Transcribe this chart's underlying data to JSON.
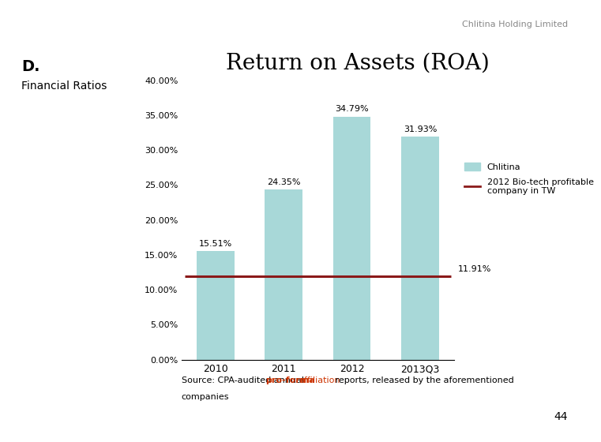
{
  "title": "Return on Assets (ROA)",
  "header": "Chlitina Holding Limited",
  "left_label_line1": "D.",
  "left_label_line2": "Financial Ratios",
  "categories": [
    "2010",
    "2011",
    "2012",
    "2013Q3"
  ],
  "values": [
    15.51,
    24.35,
    34.79,
    31.93
  ],
  "bar_color": "#a8d8d8",
  "reference_line_value": 11.91,
  "reference_line_color": "#8b1a1a",
  "reference_line_label": "2012 Bio-tech profitable\ncompany in TW",
  "bar_legend_label": "Chlitina",
  "ylim": [
    0,
    40
  ],
  "yticks": [
    0,
    5,
    10,
    15,
    20,
    25,
    30,
    35,
    40
  ],
  "ytick_labels": [
    "0.00%",
    "5.00%",
    "10.00%",
    "15.00%",
    "20.00%",
    "25.00%",
    "30.00%",
    "35.00%",
    "40.00%"
  ],
  "value_labels": [
    "15.51%",
    "24.35%",
    "34.79%",
    "31.93%"
  ],
  "ref_label": "11.91%",
  "source_bold_color": "#cc3300",
  "source_link_color_hex": "#cc3300",
  "page_number": "44",
  "left_panel_color": "#f4c2c2",
  "background_color": "#ffffff",
  "title_fontsize": 20,
  "value_label_fontsize": 8,
  "legend_fontsize": 8,
  "source_fontsize": 8,
  "header_fontsize": 8
}
